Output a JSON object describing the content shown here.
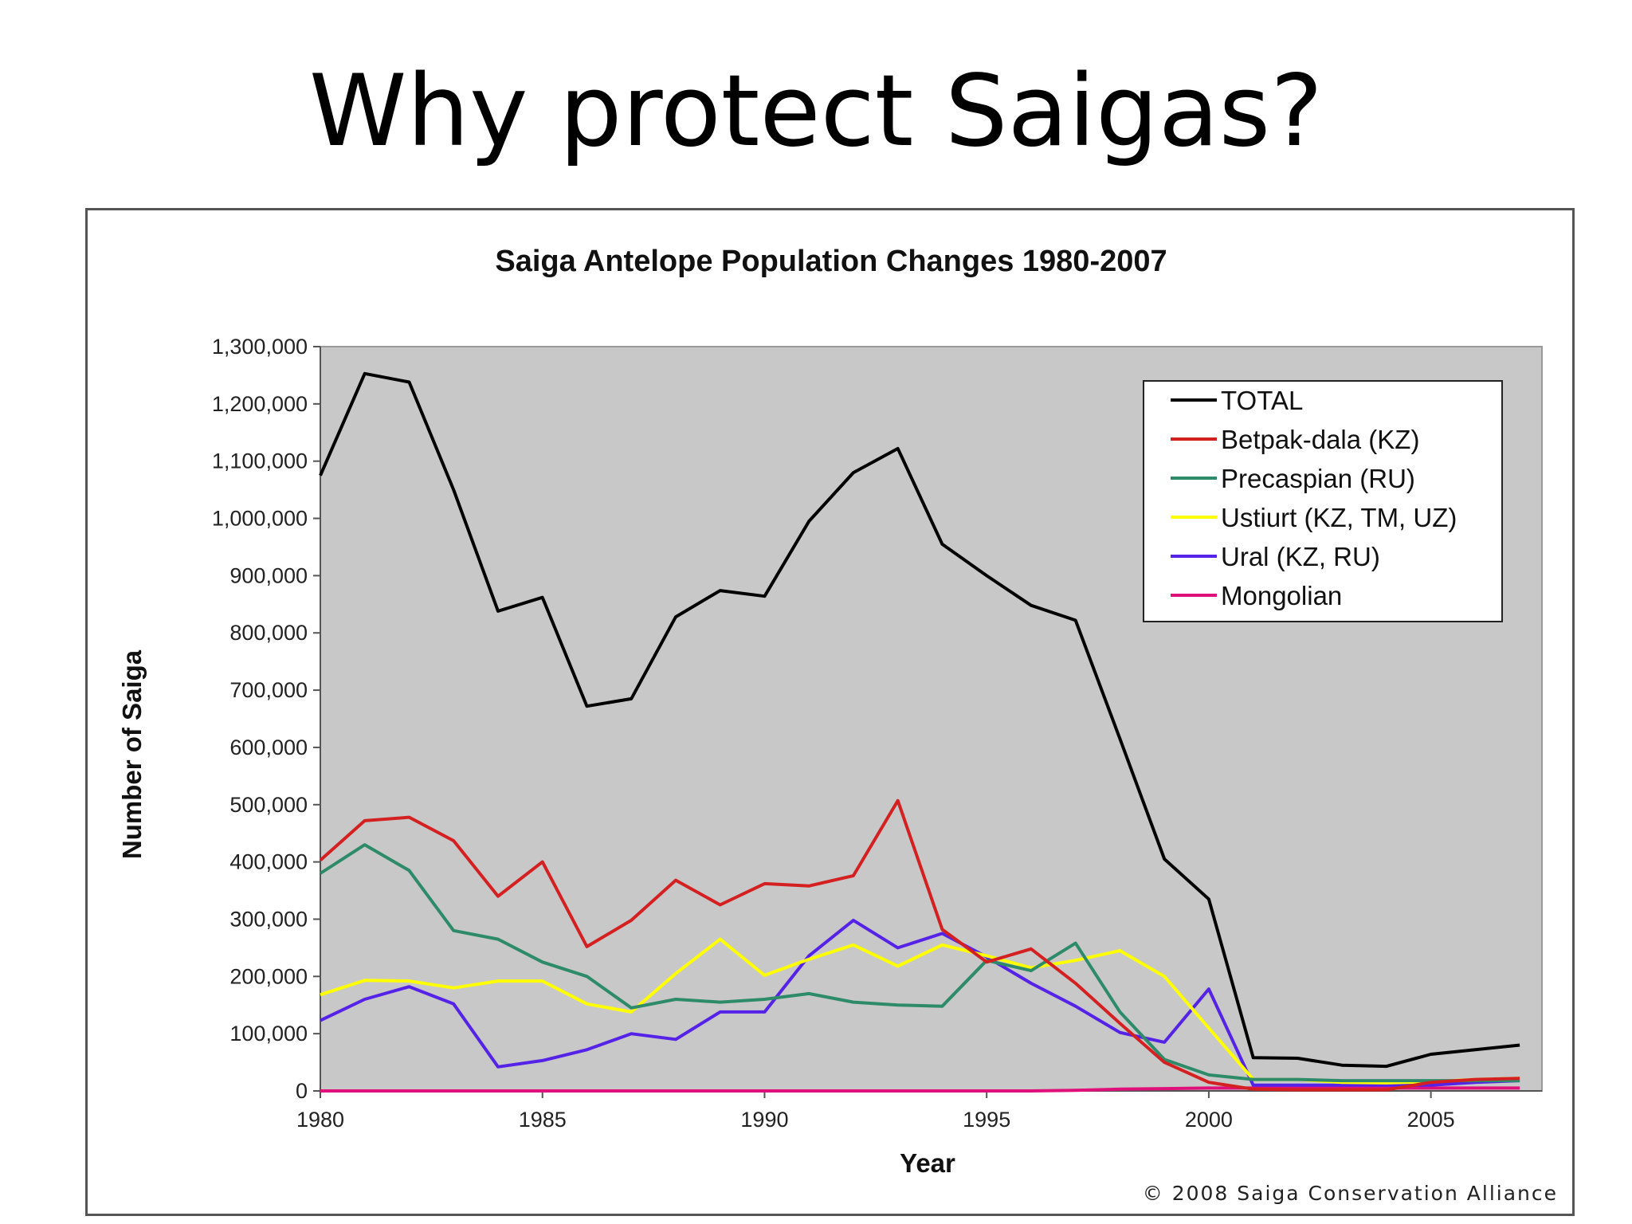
{
  "slide": {
    "title": "Why protect Saigas?"
  },
  "chart_data": {
    "type": "line",
    "title": "Saiga Antelope Population Changes 1980-2007",
    "xlabel": "Year",
    "ylabel": "Number of Saiga",
    "xlim": [
      1980,
      2007.5
    ],
    "ylim": [
      0,
      1300000
    ],
    "x_ticks": [
      1980,
      1985,
      1990,
      1995,
      2000,
      2005
    ],
    "y_ticks": [
      0,
      100000,
      200000,
      300000,
      400000,
      500000,
      600000,
      700000,
      800000,
      900000,
      1000000,
      1100000,
      1200000,
      1300000
    ],
    "y_tick_labels": [
      "0",
      "100,000",
      "200,000",
      "300,000",
      "400,000",
      "500,000",
      "600,000",
      "700,000",
      "800,000",
      "900,000",
      "1,000,000",
      "1,100,000",
      "1,200,000",
      "1,300,000"
    ],
    "grid": false,
    "plot_background": "#c8c8c8",
    "legend_position": "top-right",
    "credit": "© 2008 Saiga Conservation Alliance",
    "series": [
      {
        "name": "TOTAL",
        "color": "#000000",
        "x": [
          1980,
          1981,
          1982,
          1983,
          1984,
          1985,
          1986,
          1987,
          1988,
          1989,
          1990,
          1991,
          1992,
          1993,
          1994,
          1995,
          1996,
          1997,
          1998,
          1999,
          2000,
          2001,
          2002,
          2003,
          2004,
          2005,
          2006,
          2007
        ],
        "y": [
          1075000,
          1253000,
          1238000,
          1050000,
          838000,
          862000,
          672000,
          685000,
          828000,
          874000,
          864000,
          995000,
          1080000,
          1122000,
          955000,
          900000,
          848000,
          822000,
          615000,
          405000,
          335000,
          58000,
          57000,
          45000,
          43000,
          64000,
          72000,
          80000
        ]
      },
      {
        "name": "Betpak-dala (KZ)",
        "color": "#d42020",
        "x": [
          1980,
          1981,
          1982,
          1983,
          1984,
          1985,
          1986,
          1987,
          1988,
          1989,
          1990,
          1991,
          1992,
          1993,
          1994,
          1995,
          1996,
          1997,
          1998,
          1999,
          2000,
          2001,
          2002,
          2003,
          2004,
          2005,
          2006,
          2007
        ],
        "y": [
          403000,
          472000,
          478000,
          437000,
          340000,
          400000,
          252000,
          298000,
          368000,
          325000,
          362000,
          358000,
          376000,
          507000,
          282000,
          225000,
          248000,
          188000,
          118000,
          50000,
          15000,
          3000,
          2000,
          2000,
          2000,
          15000,
          20000,
          22000
        ]
      },
      {
        "name": "Precaspian (RU)",
        "color": "#2e8b6a",
        "x": [
          1980,
          1981,
          1982,
          1983,
          1984,
          1985,
          1986,
          1987,
          1988,
          1989,
          1990,
          1991,
          1992,
          1993,
          1994,
          1995,
          1996,
          1997,
          1998,
          1999,
          2000,
          2001,
          2002,
          2003,
          2004,
          2005,
          2006,
          2007
        ],
        "y": [
          380000,
          430000,
          385000,
          280000,
          265000,
          225000,
          200000,
          145000,
          160000,
          155000,
          160000,
          170000,
          155000,
          150000,
          148000,
          228000,
          210000,
          258000,
          138000,
          55000,
          28000,
          20000,
          20000,
          18000,
          18000,
          18000,
          18000,
          18000
        ]
      },
      {
        "name": "Ustiurt (KZ, TM, UZ)",
        "color": "#ffff00",
        "x": [
          1980,
          1981,
          1982,
          1983,
          1984,
          1985,
          1986,
          1987,
          1988,
          1989,
          1990,
          1991,
          1992,
          1993,
          1994,
          1995,
          1996,
          1997,
          1998,
          1999,
          2000,
          2001,
          2002,
          2003,
          2004,
          2005,
          2006,
          2007
        ],
        "y": [
          168000,
          193000,
          192000,
          180000,
          192000,
          192000,
          152000,
          138000,
          205000,
          265000,
          202000,
          230000,
          255000,
          218000,
          255000,
          236000,
          215000,
          228000,
          245000,
          200000,
          110000,
          20000,
          20000,
          15000,
          14000,
          16000,
          20000,
          22000
        ]
      },
      {
        "name": "Ural (KZ, RU)",
        "color": "#5522e8",
        "x": [
          1980,
          1981,
          1982,
          1983,
          1984,
          1985,
          1986,
          1987,
          1988,
          1989,
          1990,
          1991,
          1992,
          1993,
          1994,
          1995,
          1996,
          1997,
          1998,
          1999,
          2000,
          2001,
          2002,
          2003,
          2004,
          2005,
          2006,
          2007
        ],
        "y": [
          123000,
          160000,
          182000,
          152000,
          42000,
          53000,
          72000,
          100000,
          90000,
          138000,
          138000,
          236000,
          298000,
          250000,
          275000,
          234000,
          188000,
          148000,
          102000,
          85000,
          178000,
          10000,
          10000,
          10000,
          10000,
          10000,
          15000,
          18000
        ]
      },
      {
        "name": "Mongolian",
        "color": "#e0107a",
        "x": [
          1980,
          1981,
          1982,
          1983,
          1984,
          1985,
          1986,
          1987,
          1988,
          1989,
          1990,
          1991,
          1992,
          1993,
          1994,
          1995,
          1996,
          1997,
          1998,
          1999,
          2000,
          2001,
          2002,
          2003,
          2004,
          2005,
          2006,
          2007
        ],
        "y": [
          0,
          0,
          0,
          0,
          0,
          0,
          0,
          0,
          0,
          0,
          0,
          0,
          0,
          0,
          0,
          0,
          0,
          1000,
          3000,
          4000,
          5000,
          5000,
          5000,
          5000,
          5000,
          5000,
          5000,
          5000
        ]
      }
    ]
  }
}
